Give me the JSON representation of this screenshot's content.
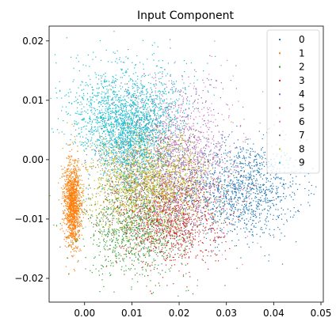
{
  "chart_data": {
    "type": "scatter",
    "title": "Input Component",
    "xlabel": "",
    "ylabel": "",
    "xlim": [
      -0.0075,
      0.0505
    ],
    "ylim": [
      -0.024,
      0.0225
    ],
    "x_ticks": [
      0.0,
      0.01,
      0.02,
      0.03,
      0.04,
      0.05
    ],
    "x_tick_labels": [
      "0.00",
      "0.01",
      "0.02",
      "0.03",
      "0.04",
      "0.05"
    ],
    "y_ticks": [
      -0.02,
      -0.01,
      0.0,
      0.01,
      0.02
    ],
    "y_tick_labels": [
      "−0.02",
      "−0.01",
      "0.00",
      "0.01",
      "0.02"
    ],
    "grid": false,
    "legend": {
      "placement": "upper-right"
    },
    "series": [
      {
        "name": "0",
        "color": "#1f77b4",
        "cluster": {
          "cx": 0.033,
          "cy": -0.005,
          "sx": 0.0065,
          "sy": 0.0042,
          "n": 1300
        }
      },
      {
        "name": "1",
        "color": "#ff7f0e",
        "cluster": {
          "cx": -0.0025,
          "cy": -0.0075,
          "sx": 0.0012,
          "sy": 0.0035,
          "n": 1300
        }
      },
      {
        "name": "2",
        "color": "#2ca02c",
        "cluster": {
          "cx": 0.011,
          "cy": -0.012,
          "sx": 0.0055,
          "sy": 0.0037,
          "n": 900
        }
      },
      {
        "name": "3",
        "color": "#d62728",
        "cluster": {
          "cx": 0.018,
          "cy": -0.01,
          "sx": 0.0055,
          "sy": 0.004,
          "n": 1000
        }
      },
      {
        "name": "4",
        "color": "#9467bd",
        "cluster": {
          "cx": 0.018,
          "cy": 0.002,
          "sx": 0.006,
          "sy": 0.0065,
          "n": 700
        }
      },
      {
        "name": "5",
        "color": "#8c564b",
        "cluster": {
          "cx": 0.016,
          "cy": -0.004,
          "sx": 0.006,
          "sy": 0.005,
          "n": 700
        }
      },
      {
        "name": "6",
        "color": "#e377c2",
        "cluster": {
          "cx": 0.022,
          "cy": 0.001,
          "sx": 0.006,
          "sy": 0.006,
          "n": 600
        }
      },
      {
        "name": "7",
        "color": "#7f7f7f",
        "cluster": {
          "cx": 0.012,
          "cy": -0.003,
          "sx": 0.006,
          "sy": 0.005,
          "n": 400
        }
      },
      {
        "name": "8",
        "color": "#bcbd22",
        "cluster": {
          "cx": 0.013,
          "cy": -0.0035,
          "sx": 0.0065,
          "sy": 0.004,
          "n": 1500
        }
      },
      {
        "name": "9",
        "color": "#17becf",
        "cluster": {
          "cx": 0.009,
          "cy": 0.0065,
          "sx": 0.0055,
          "sy": 0.0045,
          "n": 2200
        }
      }
    ]
  }
}
